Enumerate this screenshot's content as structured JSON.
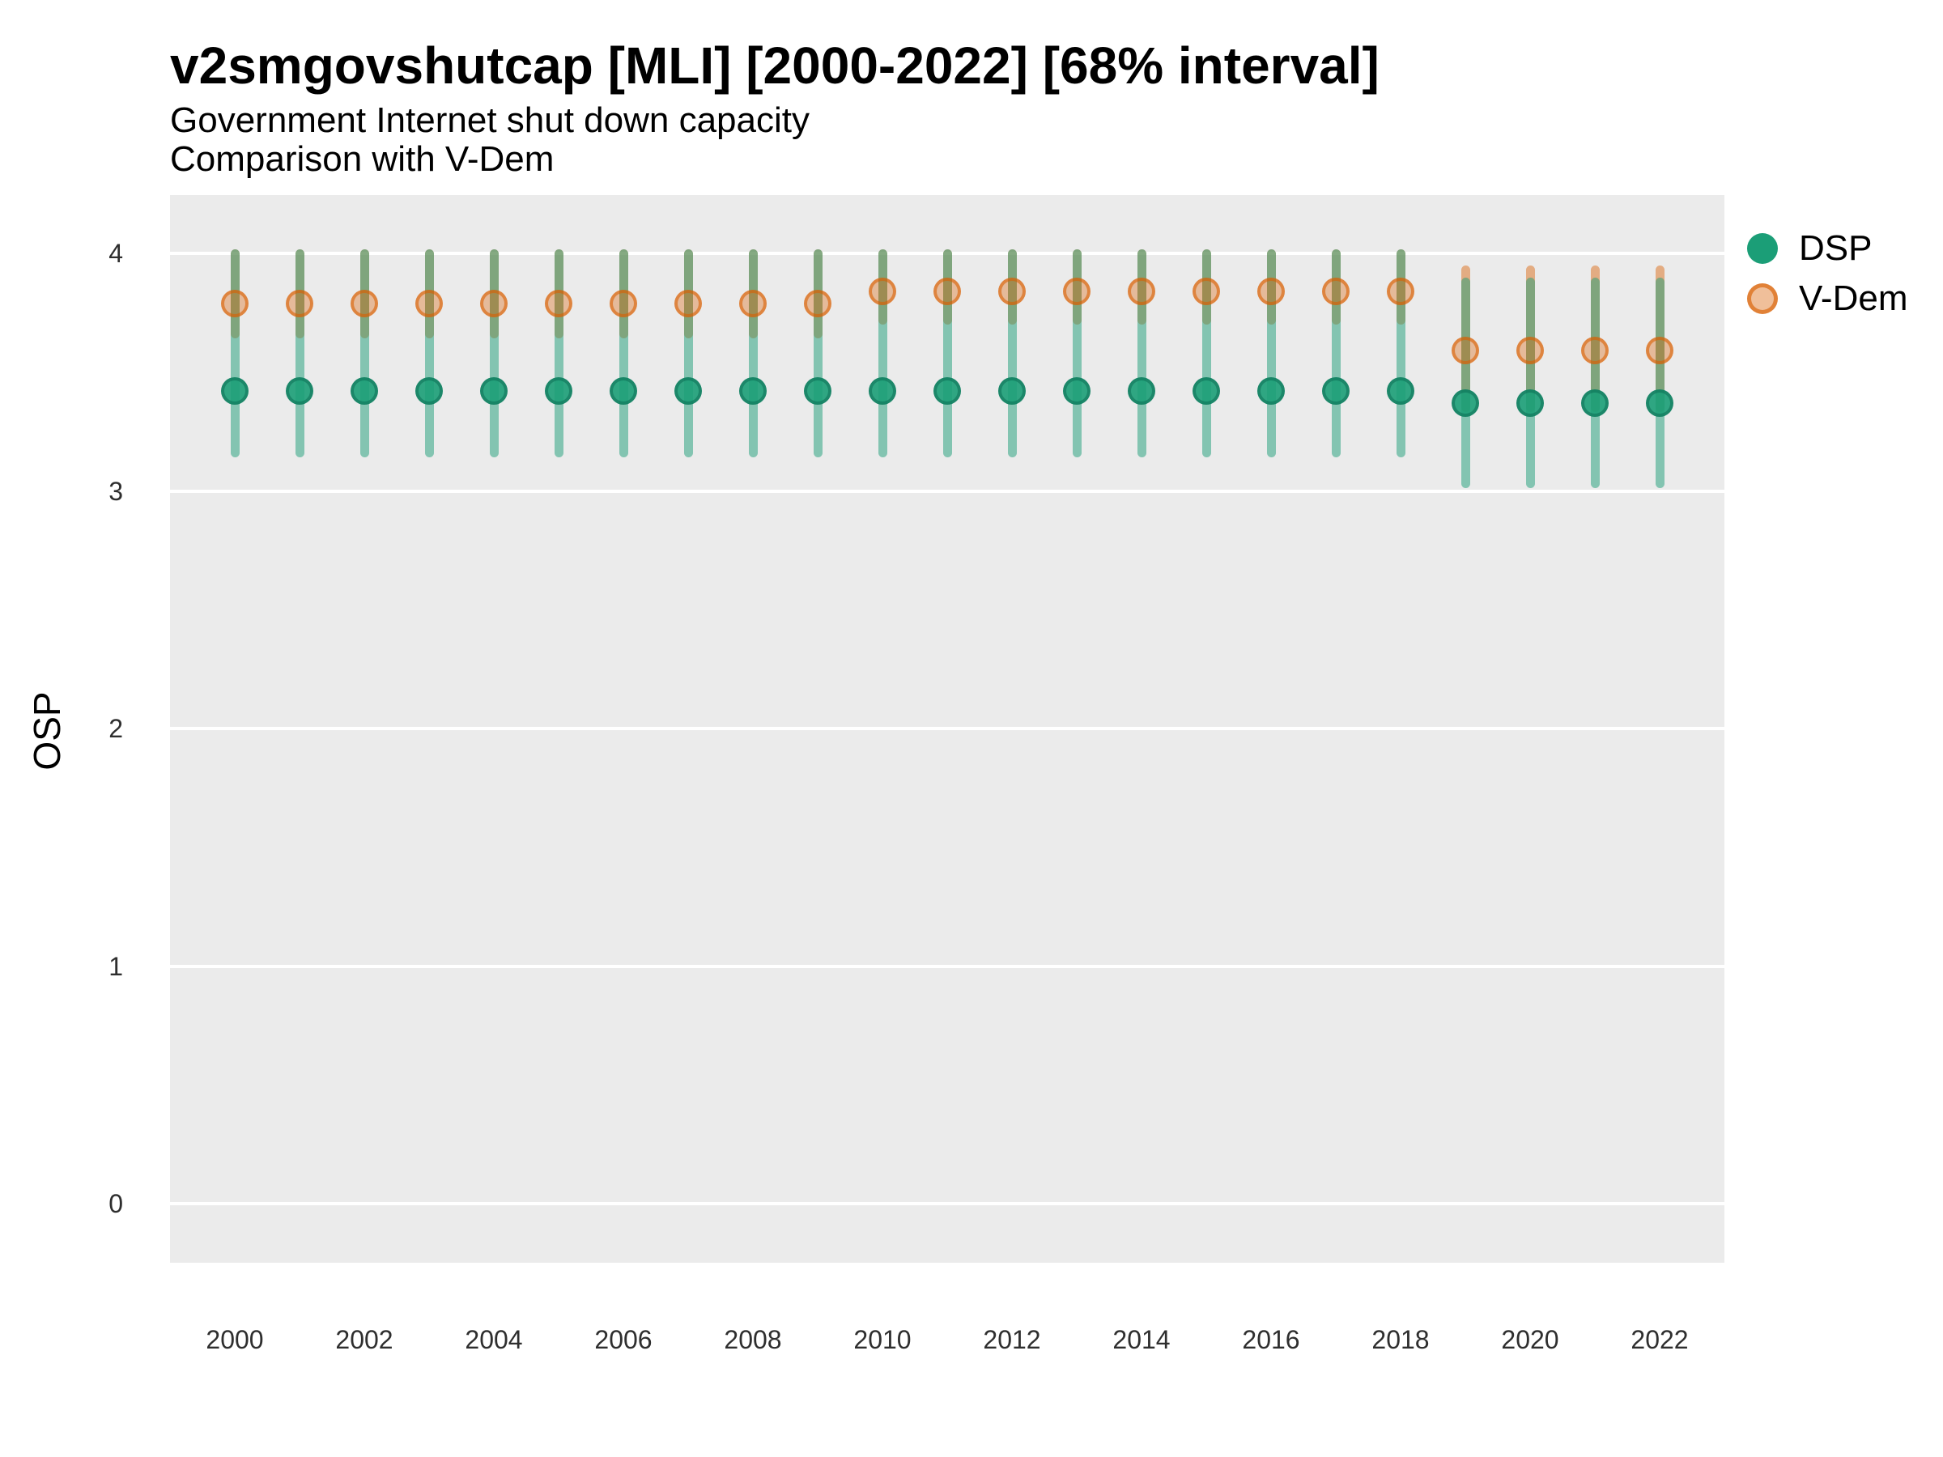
{
  "chart_data": {
    "type": "pointrange",
    "title": "v2smgovshutcap [MLI] [2000-2022] [68% interval]",
    "subtitle": [
      "Government Internet shut down capacity",
      "Comparison with V-Dem"
    ],
    "interval_label": "68% interval",
    "xlabel": "",
    "ylabel": "OSP",
    "ylim": [
      -0.25,
      4.25
    ],
    "yticks": [
      4,
      3,
      2,
      1,
      0
    ],
    "xticks": [
      2000,
      2002,
      2004,
      2006,
      2008,
      2010,
      2012,
      2014,
      2016,
      2018,
      2020,
      2022
    ],
    "x": [
      2000,
      2001,
      2002,
      2003,
      2004,
      2005,
      2006,
      2007,
      2008,
      2009,
      2010,
      2011,
      2012,
      2013,
      2014,
      2015,
      2016,
      2017,
      2018,
      2019,
      2020,
      2021,
      2022
    ],
    "grid": "horizontal major gridlines, white on gray panel",
    "legend_position": "right-top",
    "panel_color": "#EBEBEB",
    "series": [
      {
        "name": "DSP",
        "color": "#1B9E77",
        "points": [
          {
            "year": 2000,
            "value": 3.42,
            "lo": 3.16,
            "hi": 4.0
          },
          {
            "year": 2001,
            "value": 3.42,
            "lo": 3.16,
            "hi": 4.0
          },
          {
            "year": 2002,
            "value": 3.42,
            "lo": 3.16,
            "hi": 4.0
          },
          {
            "year": 2003,
            "value": 3.42,
            "lo": 3.16,
            "hi": 4.0
          },
          {
            "year": 2004,
            "value": 3.42,
            "lo": 3.16,
            "hi": 4.0
          },
          {
            "year": 2005,
            "value": 3.42,
            "lo": 3.16,
            "hi": 4.0
          },
          {
            "year": 2006,
            "value": 3.42,
            "lo": 3.16,
            "hi": 4.0
          },
          {
            "year": 2007,
            "value": 3.42,
            "lo": 3.16,
            "hi": 4.0
          },
          {
            "year": 2008,
            "value": 3.42,
            "lo": 3.16,
            "hi": 4.0
          },
          {
            "year": 2009,
            "value": 3.42,
            "lo": 3.16,
            "hi": 4.0
          },
          {
            "year": 2010,
            "value": 3.42,
            "lo": 3.16,
            "hi": 4.0
          },
          {
            "year": 2011,
            "value": 3.42,
            "lo": 3.16,
            "hi": 4.0
          },
          {
            "year": 2012,
            "value": 3.42,
            "lo": 3.16,
            "hi": 4.0
          },
          {
            "year": 2013,
            "value": 3.42,
            "lo": 3.16,
            "hi": 4.0
          },
          {
            "year": 2014,
            "value": 3.42,
            "lo": 3.16,
            "hi": 4.0
          },
          {
            "year": 2015,
            "value": 3.42,
            "lo": 3.16,
            "hi": 4.0
          },
          {
            "year": 2016,
            "value": 3.42,
            "lo": 3.16,
            "hi": 4.0
          },
          {
            "year": 2017,
            "value": 3.42,
            "lo": 3.16,
            "hi": 4.0
          },
          {
            "year": 2018,
            "value": 3.42,
            "lo": 3.16,
            "hi": 4.0
          },
          {
            "year": 2019,
            "value": 3.37,
            "lo": 3.03,
            "hi": 3.88
          },
          {
            "year": 2020,
            "value": 3.37,
            "lo": 3.03,
            "hi": 3.88
          },
          {
            "year": 2021,
            "value": 3.37,
            "lo": 3.03,
            "hi": 3.88
          },
          {
            "year": 2022,
            "value": 3.37,
            "lo": 3.03,
            "hi": 3.88
          }
        ]
      },
      {
        "name": "V-Dem",
        "color": "#D95F02",
        "points": [
          {
            "year": 2000,
            "value": 3.79,
            "lo": 3.66,
            "hi": 4.0
          },
          {
            "year": 2001,
            "value": 3.79,
            "lo": 3.66,
            "hi": 4.0
          },
          {
            "year": 2002,
            "value": 3.79,
            "lo": 3.66,
            "hi": 4.0
          },
          {
            "year": 2003,
            "value": 3.79,
            "lo": 3.66,
            "hi": 4.0
          },
          {
            "year": 2004,
            "value": 3.79,
            "lo": 3.66,
            "hi": 4.0
          },
          {
            "year": 2005,
            "value": 3.79,
            "lo": 3.66,
            "hi": 4.0
          },
          {
            "year": 2006,
            "value": 3.79,
            "lo": 3.66,
            "hi": 4.0
          },
          {
            "year": 2007,
            "value": 3.79,
            "lo": 3.66,
            "hi": 4.0
          },
          {
            "year": 2008,
            "value": 3.79,
            "lo": 3.66,
            "hi": 4.0
          },
          {
            "year": 2009,
            "value": 3.79,
            "lo": 3.66,
            "hi": 4.0
          },
          {
            "year": 2010,
            "value": 3.84,
            "lo": 3.72,
            "hi": 4.0
          },
          {
            "year": 2011,
            "value": 3.84,
            "lo": 3.72,
            "hi": 4.0
          },
          {
            "year": 2012,
            "value": 3.84,
            "lo": 3.72,
            "hi": 4.0
          },
          {
            "year": 2013,
            "value": 3.84,
            "lo": 3.72,
            "hi": 4.0
          },
          {
            "year": 2014,
            "value": 3.84,
            "lo": 3.72,
            "hi": 4.0
          },
          {
            "year": 2015,
            "value": 3.84,
            "lo": 3.72,
            "hi": 4.0
          },
          {
            "year": 2016,
            "value": 3.84,
            "lo": 3.72,
            "hi": 4.0
          },
          {
            "year": 2017,
            "value": 3.84,
            "lo": 3.72,
            "hi": 4.0
          },
          {
            "year": 2018,
            "value": 3.84,
            "lo": 3.72,
            "hi": 4.0
          },
          {
            "year": 2019,
            "value": 3.59,
            "lo": 3.35,
            "hi": 3.93
          },
          {
            "year": 2020,
            "value": 3.59,
            "lo": 3.35,
            "hi": 3.93
          },
          {
            "year": 2021,
            "value": 3.59,
            "lo": 3.35,
            "hi": 3.93
          },
          {
            "year": 2022,
            "value": 3.59,
            "lo": 3.35,
            "hi": 3.93
          }
        ]
      }
    ]
  }
}
